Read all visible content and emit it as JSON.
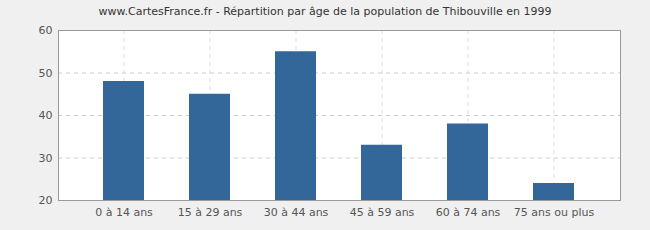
{
  "chart_data": {
    "type": "bar",
    "title": "www.CartesFrance.fr - Répartition par âge de la population de Thibouville en 1999",
    "categories": [
      "0 à 14 ans",
      "15 à 29 ans",
      "30 à 44 ans",
      "45 à 59 ans",
      "60 à 74 ans",
      "75 ans ou plus"
    ],
    "values": [
      48,
      45,
      55,
      33,
      38,
      24
    ],
    "color": "#336699",
    "ylim": [
      20,
      60
    ],
    "yticks": [
      20,
      30,
      40,
      50,
      60
    ],
    "grid": true
  }
}
